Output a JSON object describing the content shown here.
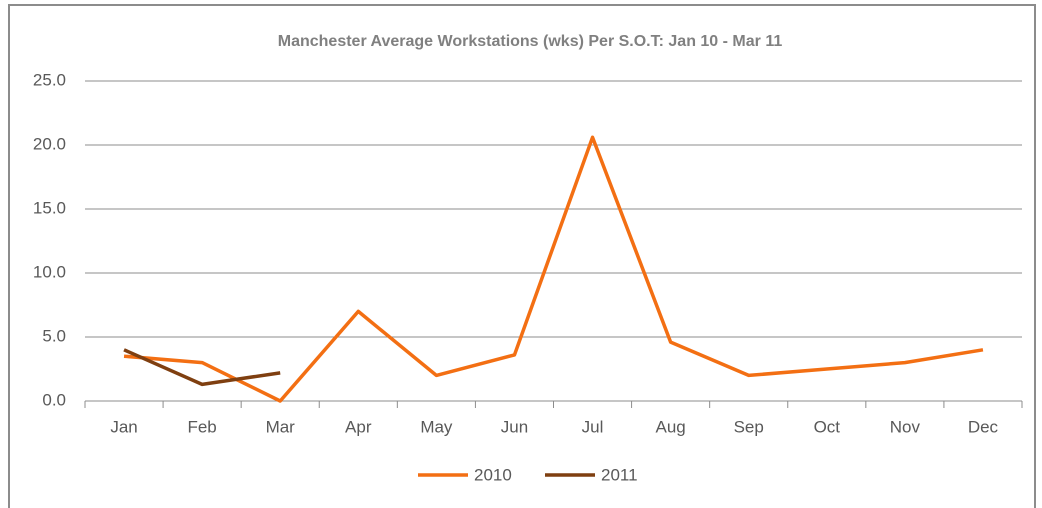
{
  "chart_data": {
    "type": "line",
    "title": "Manchester Average Workstations (wks) Per S.O.T: Jan 10 - Mar 11",
    "categories": [
      "Jan",
      "Feb",
      "Mar",
      "Apr",
      "May",
      "Jun",
      "Jul",
      "Aug",
      "Sep",
      "Oct",
      "Nov",
      "Dec"
    ],
    "series": [
      {
        "name": "2010",
        "color": "#f36f13",
        "values": [
          3.5,
          3.0,
          0,
          7.0,
          2.0,
          3.6,
          20.6,
          4.6,
          2.0,
          2.5,
          3.0,
          4.0
        ]
      },
      {
        "name": "2011",
        "color": "#7f3f10",
        "values": [
          4.0,
          1.3,
          2.2,
          null,
          null,
          null,
          null,
          null,
          null,
          null,
          null,
          null
        ]
      }
    ],
    "ylim": [
      0,
      25
    ],
    "yticks": [
      {
        "value": 0,
        "label": "0.0"
      },
      {
        "value": 5,
        "label": "5.0"
      },
      {
        "value": 10,
        "label": "10.0"
      },
      {
        "value": 15,
        "label": "15.0"
      },
      {
        "value": 20,
        "label": "20.0"
      },
      {
        "value": 25,
        "label": "25.0"
      }
    ],
    "grid": true,
    "legend": "bottom"
  }
}
